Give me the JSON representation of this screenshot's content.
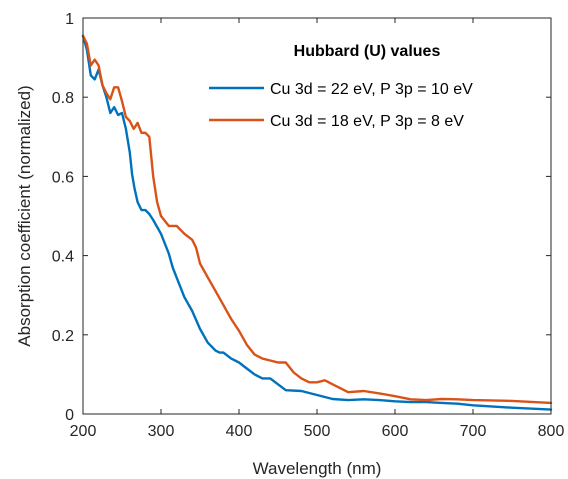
{
  "chart_data": {
    "type": "line",
    "xlabel": "Wavelength (nm)",
    "ylabel": "Absorption coefficient (normalized)",
    "xlim": [
      200,
      800
    ],
    "ylim": [
      0,
      1
    ],
    "x_ticks": [
      "200",
      "300",
      "400",
      "500",
      "600",
      "700",
      "800"
    ],
    "y_ticks": [
      "0",
      "0.2",
      "0.4",
      "0.6",
      "0.8",
      "1"
    ],
    "grid": false,
    "legend": {
      "title": "Hubbard (U) values",
      "position": "top-right"
    },
    "series": [
      {
        "name": "Cu 3d = 22 eV, P 3p = 10 eV",
        "color": "#0072BD",
        "x": [
          200,
          205,
          210,
          215,
          220,
          225,
          230,
          235,
          240,
          245,
          250,
          255,
          260,
          263,
          266,
          270,
          275,
          280,
          285,
          290,
          300,
          310,
          315,
          320,
          330,
          340,
          350,
          360,
          370,
          375,
          380,
          390,
          400,
          410,
          420,
          430,
          440,
          450,
          460,
          480,
          500,
          520,
          540,
          560,
          580,
          600,
          620,
          640,
          660,
          680,
          700,
          750,
          800
        ],
        "y": [
          0.955,
          0.92,
          0.855,
          0.845,
          0.87,
          0.83,
          0.8,
          0.76,
          0.775,
          0.755,
          0.76,
          0.72,
          0.66,
          0.605,
          0.57,
          0.535,
          0.515,
          0.515,
          0.505,
          0.49,
          0.455,
          0.405,
          0.37,
          0.345,
          0.295,
          0.26,
          0.215,
          0.18,
          0.16,
          0.155,
          0.155,
          0.14,
          0.13,
          0.115,
          0.1,
          0.09,
          0.09,
          0.075,
          0.06,
          0.058,
          0.048,
          0.038,
          0.035,
          0.037,
          0.035,
          0.032,
          0.03,
          0.03,
          0.028,
          0.026,
          0.022,
          0.016,
          0.011
        ]
      },
      {
        "name": "Cu 3d = 18 eV, P 3p = 8 eV",
        "color": "#D95319",
        "x": [
          200,
          205,
          210,
          215,
          220,
          225,
          230,
          235,
          240,
          245,
          250,
          255,
          260,
          265,
          270,
          275,
          280,
          285,
          290,
          295,
          300,
          310,
          320,
          330,
          340,
          345,
          350,
          360,
          370,
          380,
          390,
          400,
          410,
          420,
          430,
          440,
          450,
          460,
          470,
          480,
          490,
          500,
          510,
          520,
          540,
          560,
          580,
          600,
          620,
          640,
          660,
          680,
          700,
          750,
          800
        ],
        "y": [
          0.955,
          0.935,
          0.88,
          0.895,
          0.88,
          0.83,
          0.81,
          0.795,
          0.825,
          0.825,
          0.79,
          0.75,
          0.74,
          0.72,
          0.735,
          0.71,
          0.71,
          0.7,
          0.6,
          0.535,
          0.5,
          0.475,
          0.475,
          0.455,
          0.44,
          0.42,
          0.38,
          0.345,
          0.31,
          0.275,
          0.24,
          0.21,
          0.175,
          0.15,
          0.14,
          0.135,
          0.13,
          0.13,
          0.105,
          0.09,
          0.08,
          0.08,
          0.085,
          0.075,
          0.055,
          0.058,
          0.052,
          0.045,
          0.037,
          0.035,
          0.038,
          0.037,
          0.035,
          0.033,
          0.028
        ]
      }
    ]
  }
}
